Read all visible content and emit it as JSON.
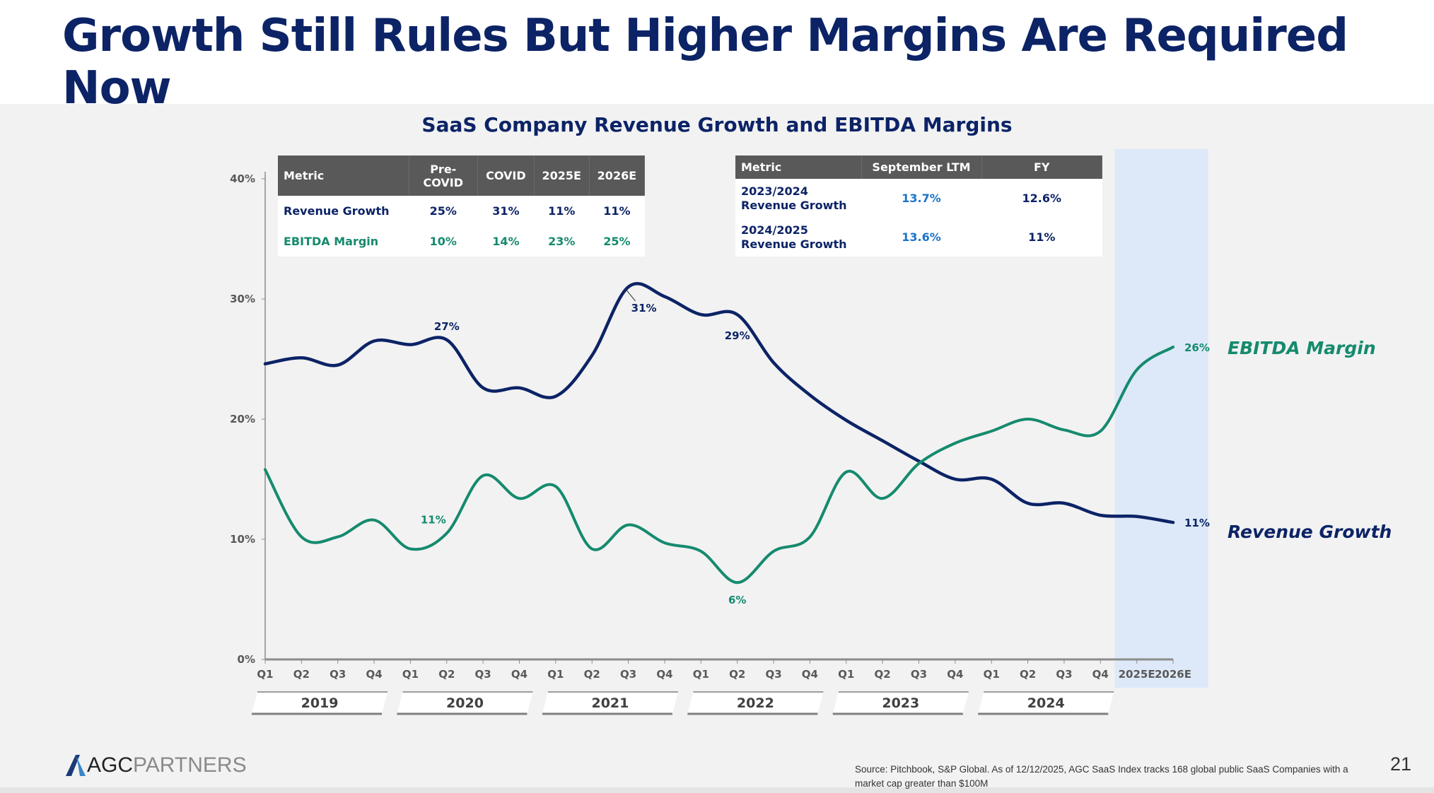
{
  "title": "Growth Still Rules But Higher Margins Are Required Now",
  "table_left": {
    "headers": [
      "Metric",
      "Pre-COVID",
      "COVID",
      "2025E",
      "2026E"
    ],
    "rows": [
      {
        "label": "Revenue Growth",
        "values": [
          "25%",
          "31%",
          "11%",
          "11%"
        ]
      },
      {
        "label": "EBITDA Margin",
        "values": [
          "10%",
          "14%",
          "23%",
          "25%"
        ]
      }
    ]
  },
  "table_right": {
    "headers": [
      "Metric",
      "September LTM",
      "FY"
    ],
    "rows": [
      {
        "label": "2023/2024 Revenue Growth",
        "values": [
          "13.7%",
          "12.6%"
        ]
      },
      {
        "label": "2024/2025 Revenue Growth",
        "values": [
          "13.6%",
          "11%"
        ]
      }
    ]
  },
  "chart_data": {
    "type": "line",
    "title": "SaaS Company Revenue Growth and EBITDA Margins",
    "xlabel": "",
    "ylabel": "",
    "ylim": [
      0,
      40
    ],
    "yticks": [
      "0%",
      "10%",
      "20%",
      "30%",
      "40%"
    ],
    "x": [
      "Q1",
      "Q2",
      "Q3",
      "Q4",
      "Q1",
      "Q2",
      "Q3",
      "Q4",
      "Q1",
      "Q2",
      "Q3",
      "Q4",
      "Q1",
      "Q2",
      "Q3",
      "Q4",
      "Q1",
      "Q2",
      "Q3",
      "Q4",
      "Q1",
      "Q2",
      "Q3",
      "Q4",
      "2025E",
      "2026E"
    ],
    "year_groups": [
      "2019",
      "2020",
      "2021",
      "2022",
      "2023",
      "2024"
    ],
    "highlight_range": [
      "2025E",
      "2026E"
    ],
    "series": [
      {
        "name": "Revenue Growth",
        "color": "#0c2366",
        "values": [
          24.6,
          25.1,
          24.5,
          26.5,
          26.2,
          26.6,
          22.6,
          22.6,
          21.9,
          25.3,
          31.0,
          30.2,
          28.7,
          28.7,
          24.7,
          22.0,
          19.9,
          18.2,
          16.5,
          15.0,
          15.0,
          13.0,
          13.0,
          12.0,
          11.9,
          11.4
        ],
        "data_labels": [
          {
            "index": 5,
            "text": "27%"
          },
          {
            "index": 10,
            "text": "31%"
          },
          {
            "index": 13,
            "text": "29%"
          },
          {
            "index": 25,
            "text": "11%"
          }
        ]
      },
      {
        "name": "EBITDA Margin",
        "color": "#158a6e",
        "values": [
          15.8,
          10.2,
          10.2,
          11.6,
          9.2,
          10.5,
          15.3,
          13.4,
          14.4,
          9.2,
          11.2,
          9.7,
          9.0,
          6.4,
          9.0,
          10.2,
          15.6,
          13.4,
          16.3,
          18.0,
          19.0,
          20.0,
          19.1,
          19.0,
          24.1,
          26.0
        ],
        "data_labels": [
          {
            "index": 5,
            "text": "11%"
          },
          {
            "index": 13,
            "text": "6%"
          },
          {
            "index": 25,
            "text": "26%"
          }
        ]
      }
    ],
    "legend": "right, inline at line ends"
  },
  "footer": {
    "logo_a": "AGC",
    "logo_b": "PARTNERS",
    "source": "Source: Pitchbook, S&P Global. As of 12/12/2025, AGC SaaS Index tracks 168 global public SaaS Companies with a market cap greater than $100M",
    "page_number": "21"
  }
}
